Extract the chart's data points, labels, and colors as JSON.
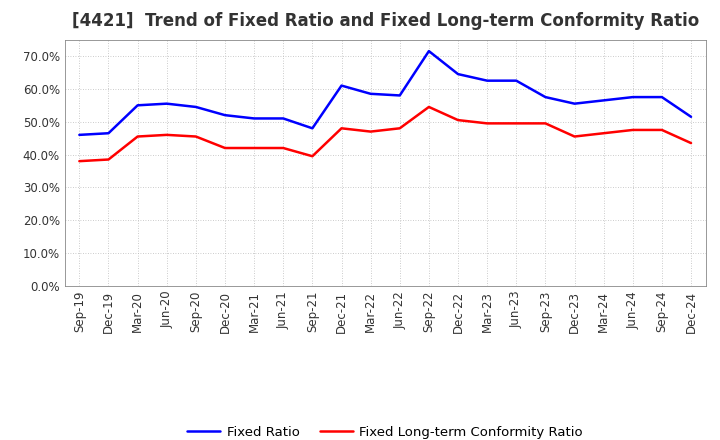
{
  "title": "[4421]  Trend of Fixed Ratio and Fixed Long-term Conformity Ratio",
  "x_labels": [
    "Sep-19",
    "Dec-19",
    "Mar-20",
    "Jun-20",
    "Sep-20",
    "Dec-20",
    "Mar-21",
    "Jun-21",
    "Sep-21",
    "Dec-21",
    "Mar-22",
    "Jun-22",
    "Sep-22",
    "Dec-22",
    "Mar-23",
    "Jun-23",
    "Sep-23",
    "Dec-23",
    "Mar-24",
    "Jun-24",
    "Sep-24",
    "Dec-24"
  ],
  "fixed_ratio": [
    46.0,
    46.5,
    55.0,
    55.5,
    54.5,
    52.0,
    51.0,
    51.0,
    48.0,
    61.0,
    58.5,
    58.0,
    71.5,
    64.5,
    62.5,
    62.5,
    57.5,
    55.5,
    56.5,
    57.5,
    57.5,
    51.5
  ],
  "fixed_lt_ratio": [
    38.0,
    38.5,
    45.5,
    46.0,
    45.5,
    42.0,
    42.0,
    42.0,
    39.5,
    48.0,
    47.0,
    48.0,
    54.5,
    50.5,
    49.5,
    49.5,
    49.5,
    45.5,
    46.5,
    47.5,
    47.5,
    43.5
  ],
  "fixed_ratio_color": "#0000FF",
  "fixed_lt_ratio_color": "#FF0000",
  "ylabel_ticks": [
    0.0,
    10.0,
    20.0,
    30.0,
    40.0,
    50.0,
    60.0,
    70.0
  ],
  "ylim": [
    0.0,
    75.0
  ],
  "background_color": "#FFFFFF",
  "plot_bg_color": "#FFFFFF",
  "grid_color": "#BBBBBB",
  "legend_fixed": "Fixed Ratio",
  "legend_fixed_lt": "Fixed Long-term Conformity Ratio",
  "title_fontsize": 12,
  "axis_fontsize": 8.5,
  "legend_fontsize": 9.5,
  "line_width": 1.8
}
